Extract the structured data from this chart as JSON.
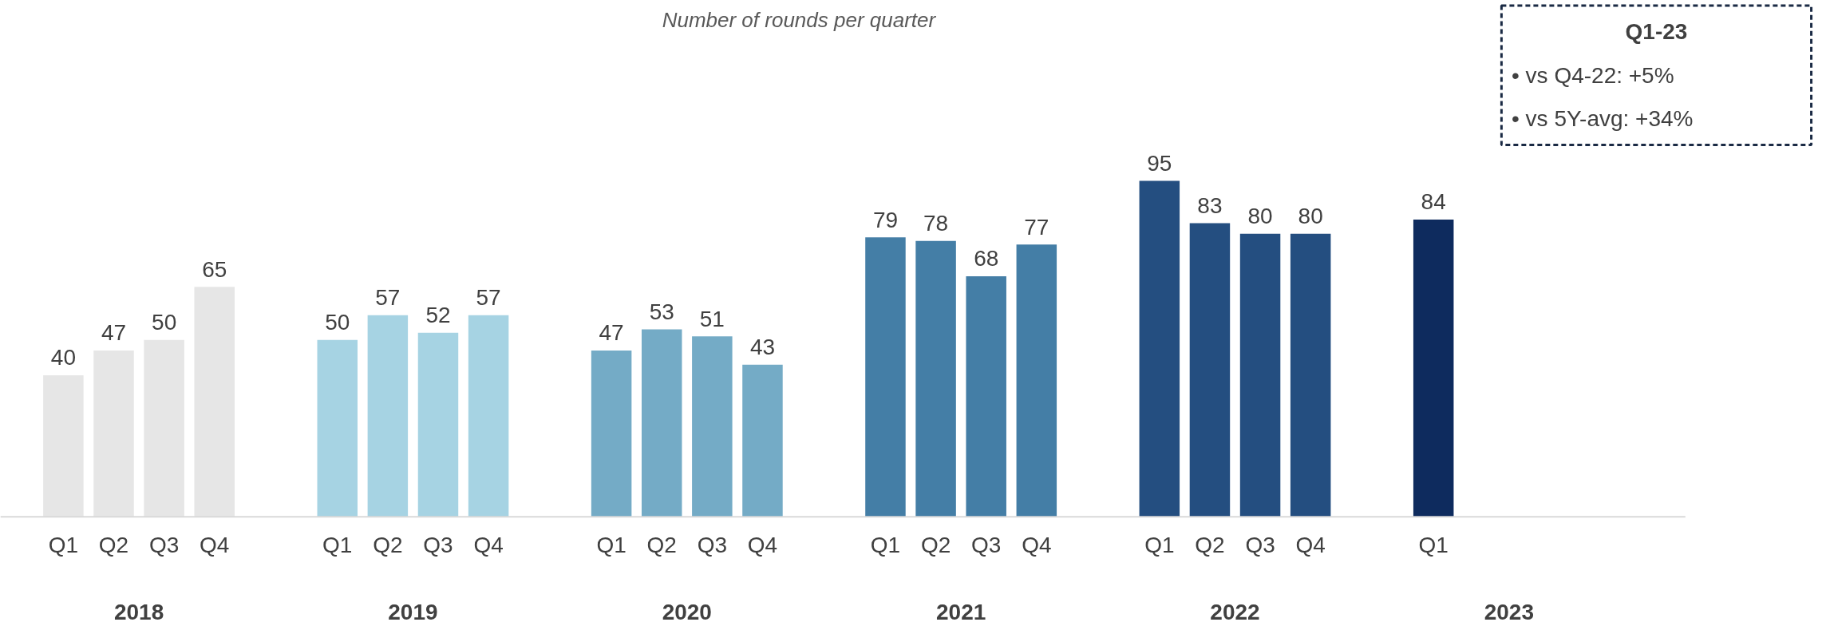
{
  "chart_data": {
    "type": "bar",
    "title": "Number of rounds per quarter",
    "categories": [
      "Q1",
      "Q2",
      "Q3",
      "Q4",
      "Q1",
      "Q2",
      "Q3",
      "Q4",
      "Q1",
      "Q2",
      "Q3",
      "Q4",
      "Q1",
      "Q2",
      "Q3",
      "Q4",
      "Q1",
      "Q2",
      "Q3",
      "Q4",
      "Q1"
    ],
    "series": [
      {
        "color": "#e6e6e6",
        "values": [
          40,
          47,
          50,
          65,
          null,
          null,
          null,
          null,
          null,
          null,
          null,
          null,
          null,
          null,
          null,
          null,
          null,
          null,
          null,
          null,
          null
        ]
      },
      {
        "color": "#a6d3e3",
        "values": [
          null,
          null,
          null,
          null,
          50,
          57,
          52,
          57,
          null,
          null,
          null,
          null,
          null,
          null,
          null,
          null,
          null,
          null,
          null,
          null,
          null
        ]
      },
      {
        "color": "#74abc6",
        "values": [
          null,
          null,
          null,
          null,
          null,
          null,
          null,
          null,
          47,
          53,
          51,
          43,
          null,
          null,
          null,
          null,
          null,
          null,
          null,
          null,
          null
        ]
      },
      {
        "color": "#447ea6",
        "values": [
          null,
          null,
          null,
          null,
          null,
          null,
          null,
          null,
          null,
          null,
          null,
          null,
          79,
          78,
          68,
          77,
          null,
          null,
          null,
          null,
          null
        ]
      },
      {
        "color": "#244e80",
        "values": [
          null,
          null,
          null,
          null,
          null,
          null,
          null,
          null,
          null,
          null,
          null,
          null,
          null,
          null,
          null,
          null,
          95,
          83,
          80,
          80,
          null
        ]
      },
      {
        "color": "#0e2b5e",
        "values": [
          null,
          null,
          null,
          null,
          null,
          null,
          null,
          null,
          null,
          null,
          null,
          null,
          null,
          null,
          null,
          null,
          null,
          null,
          null,
          null,
          84
        ]
      }
    ],
    "data_labels": true,
    "annotations": [
      "2018",
      "2019",
      "2020",
      "2021",
      "2022",
      "2023",
      "Q1-23",
      "•   vs Q4-22: +5%",
      "•   vs 5Y-avg: +34%"
    ]
  }
}
